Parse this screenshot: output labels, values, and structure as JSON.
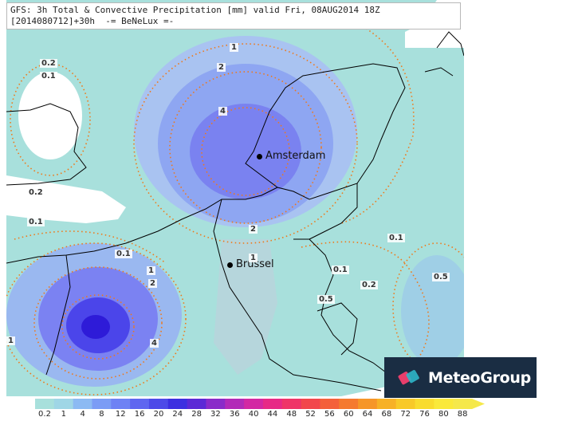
{
  "title": {
    "line1": "GFS: 3h Total & Convective Precipitation [mm] valid Fri, 08AUG2014 18Z",
    "line2": "[2014080712]+30h  -= BeNeLux =-"
  },
  "cities": [
    {
      "name": "Amsterdam"
    },
    {
      "name": "Brussel"
    }
  ],
  "contour_labels": [
    "1",
    "2",
    "4",
    "0.2",
    "0.1",
    "0.2",
    "0.1",
    "0.1",
    "1",
    "2",
    "1",
    "0.1",
    "0.2",
    "0.5",
    "0.5",
    "0.1",
    "1",
    "2",
    "4",
    "1",
    "0.5"
  ],
  "legend": {
    "ticks": [
      "0.2",
      "1",
      "4",
      "8",
      "12",
      "16",
      "20",
      "24",
      "28",
      "32",
      "36",
      "40",
      "44",
      "48",
      "52",
      "56",
      "60",
      "64",
      "68",
      "72",
      "76",
      "80",
      "88"
    ],
    "colors": [
      "#a8e0dc",
      "#9fd6e6",
      "#8cbaf3",
      "#7b9cf5",
      "#6e82f4",
      "#5f66f0",
      "#4d4ae8",
      "#3d2fe0",
      "#5c29d6",
      "#8a2bc9",
      "#b22ab8",
      "#d328a3",
      "#e72a86",
      "#ef3568",
      "#f2474c",
      "#f4603a",
      "#f57a2f",
      "#f69628",
      "#f7b126",
      "#f8c928",
      "#f9dc2e",
      "#fae93a",
      "#f5e84a"
    ]
  },
  "brand": {
    "name": "MeteoGroup",
    "bg_color": "#1a2d43",
    "mark_colors": [
      "#e83e6b",
      "#2fb6c9"
    ]
  },
  "map_colors": {
    "light_precip": "#a8e0dc",
    "medium_precip": "#9ab8f0",
    "heavy_precip": "#7b82f2",
    "core_precip": "#4b45ea",
    "contour": "#f07818",
    "border": "#000000"
  }
}
